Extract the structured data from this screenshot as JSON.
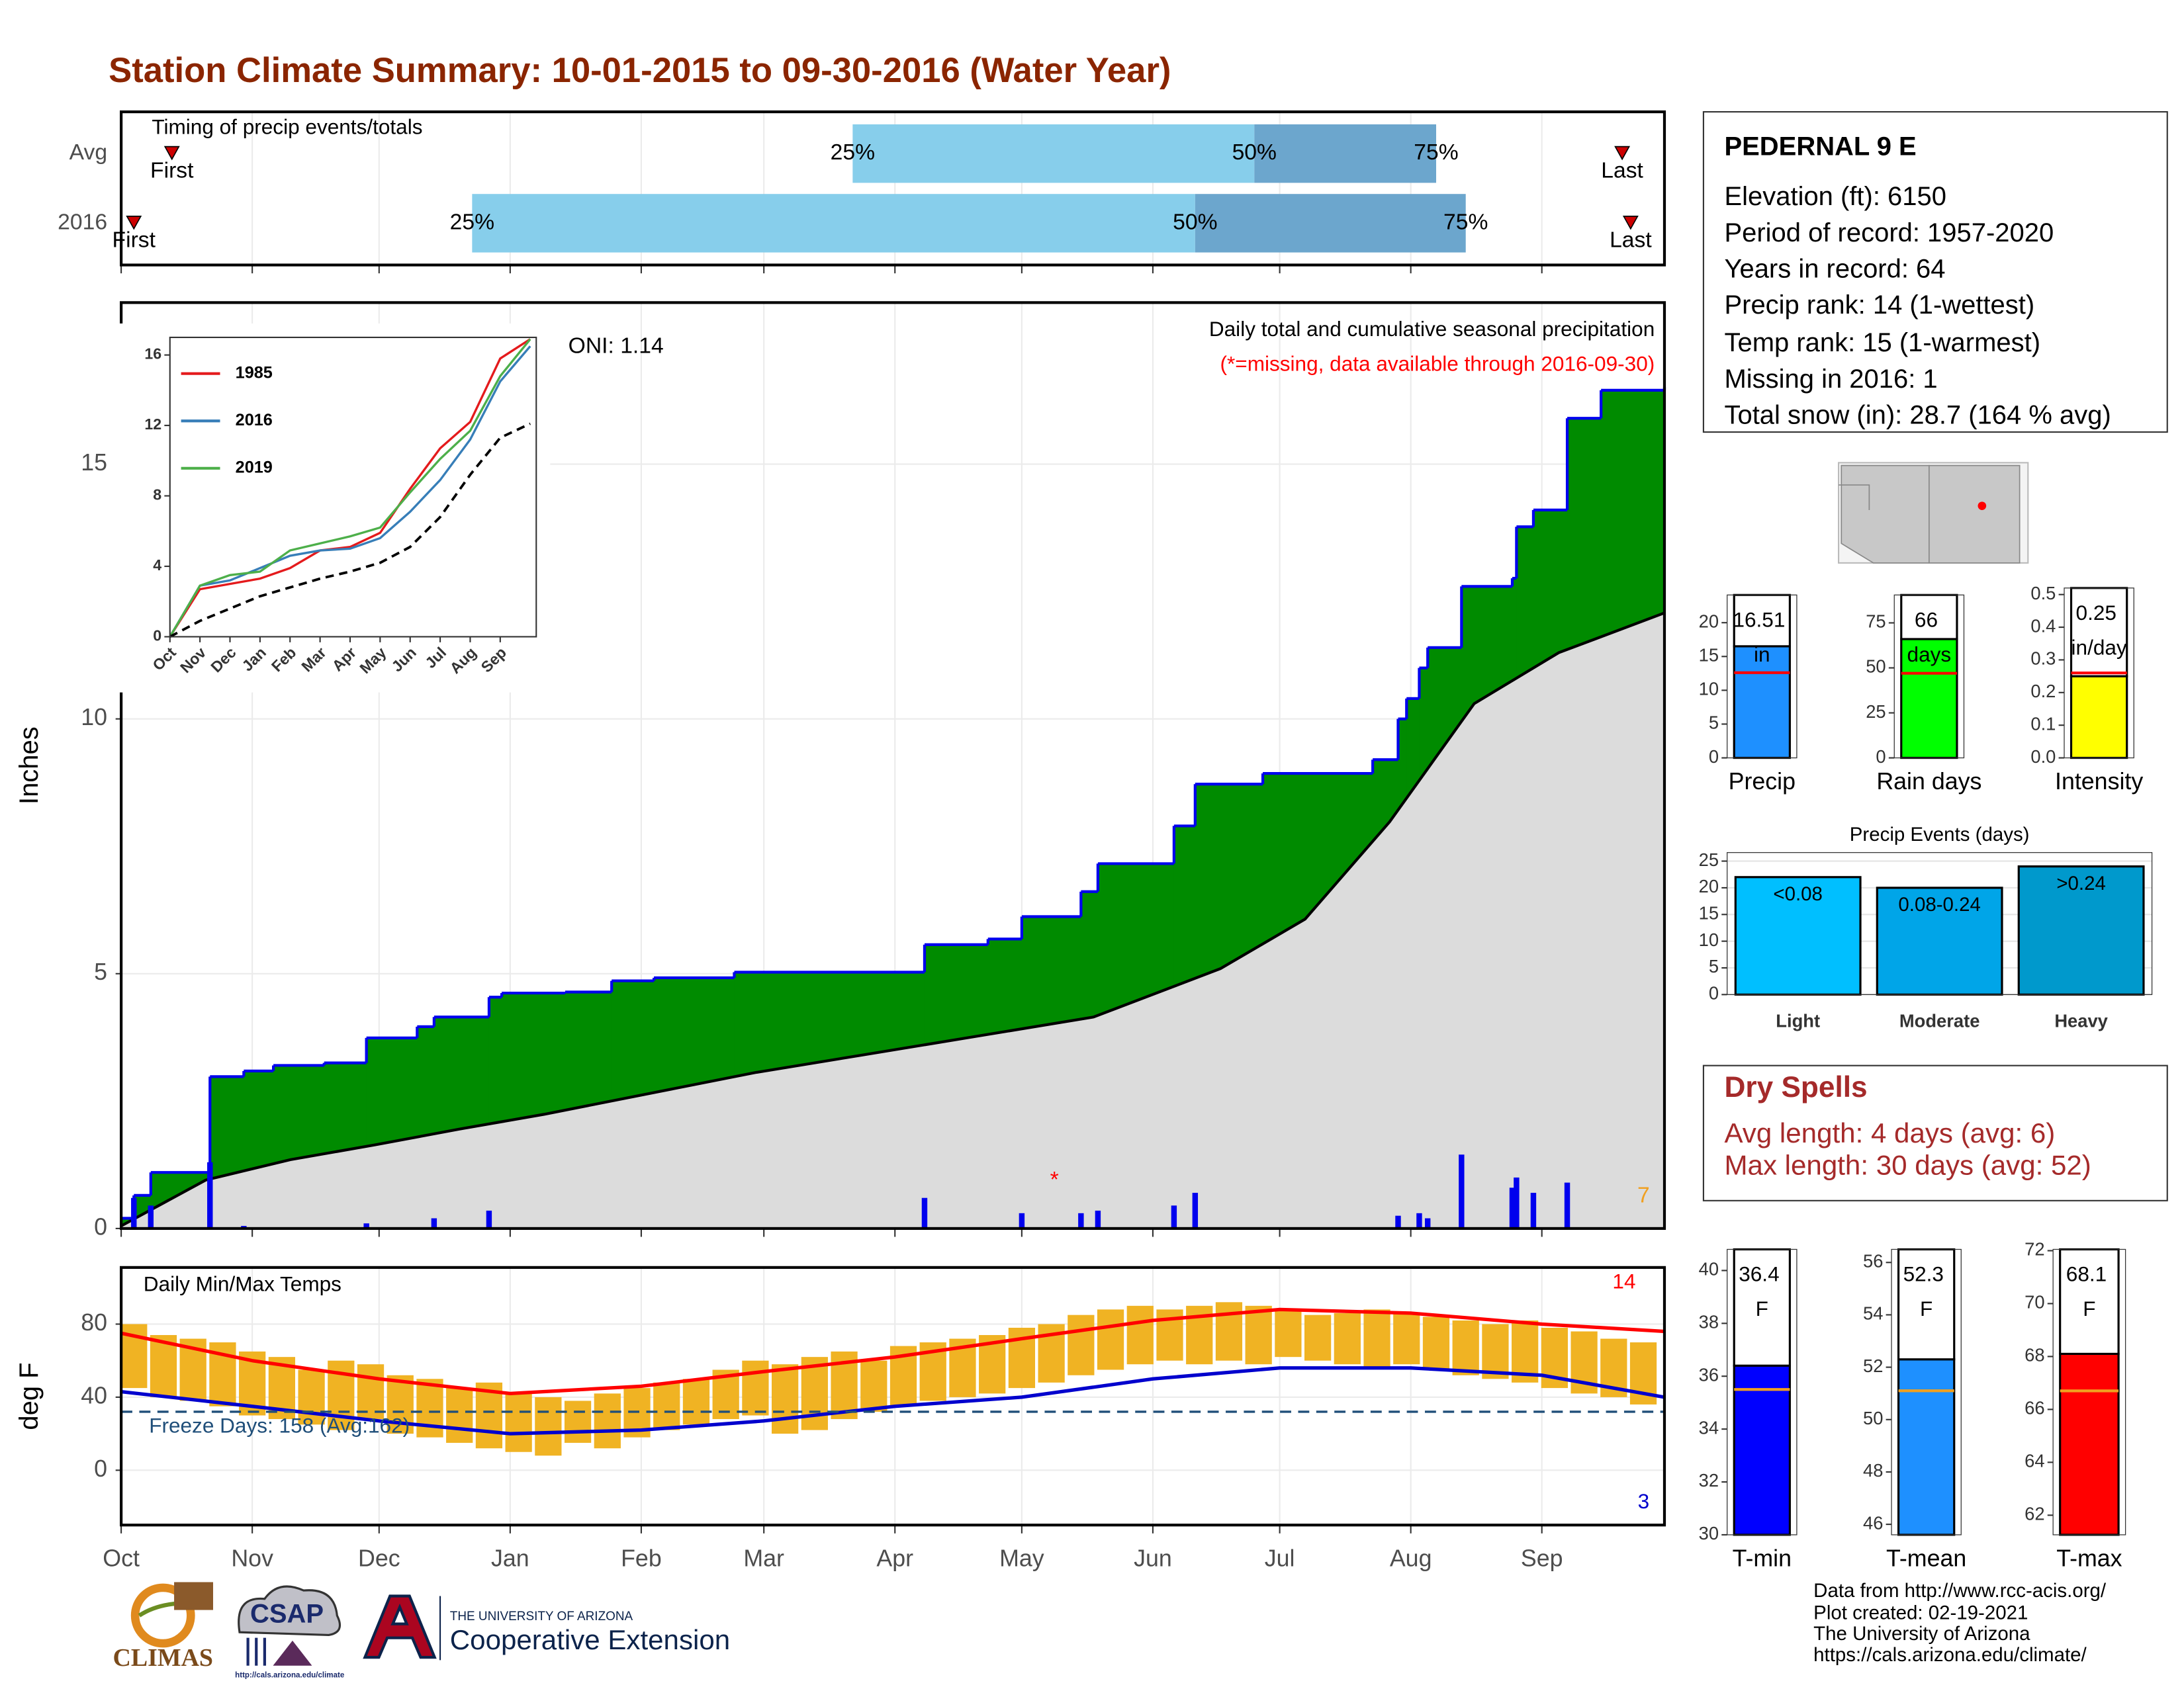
{
  "title": "Station Climate Summary: 10-01-2015 to 09-30-2016 (Water Year)",
  "station": {
    "name": "PEDERNAL 9 E",
    "lines": [
      "Elevation (ft): 6150",
      "Period of record: 1957-2020",
      "Years in record: 64",
      "Precip rank: 14 (1-wettest)",
      "Temp rank: 15 (1-warmest)",
      "Missing in 2016: 1",
      "Total snow (in): 28.7 (164 % avg)"
    ]
  },
  "dry_spells": {
    "title": "Dry Spells",
    "lines": [
      "Avg length: 4 days (avg: 6)",
      "Max length: 30 days (avg: 52)"
    ]
  },
  "footer": [
    "Data from http://www.rcc-acis.org/",
    "Plot created: 02-19-2021",
    "The University of Arizona",
    "https://cals.arizona.edu/climate/"
  ],
  "logos": {
    "climas": "CLIMAS",
    "csap": "CSAP",
    "csap_url": "http://cals.arizona.edu/climate",
    "university": "THE UNIVERSITY OF ARIZONA",
    "extension": "Cooperative Extension"
  },
  "chart_data": [
    {
      "type": "range",
      "title": "Timing of precip events/totals",
      "xlim": [
        0,
        365
      ],
      "xticks": [
        0,
        31,
        61,
        92,
        123,
        152,
        183,
        213,
        244,
        274,
        305,
        336
      ],
      "rows": [
        {
          "name": "Avg",
          "first": 12,
          "p25": 173,
          "p50": 268,
          "p75": 311,
          "last": 355
        },
        {
          "name": "2016",
          "first": 3,
          "p25": 83,
          "p50": 254,
          "p75": 318,
          "last": 357
        }
      ],
      "marker_labels": {
        "first": "First",
        "p25": "25%",
        "p50": "50%",
        "p75": "75%",
        "last": "Last"
      },
      "colors": {
        "early": "#87ceeb",
        "late": "#6ca6cd",
        "marker": "#cc0000"
      }
    },
    {
      "type": "area",
      "title": "Daily total and cumulative seasonal precipitation",
      "subtitle": "(*=missing, data available through 2016-09-30)",
      "subtitle_color": "#ff0000",
      "ylabel": "Inches",
      "xlim": [
        0,
        365
      ],
      "ylim": [
        0,
        18.17
      ],
      "yticks": [
        0,
        5,
        10,
        15
      ],
      "xticks": [
        0,
        31,
        61,
        92,
        123,
        152,
        183,
        213,
        244,
        274,
        305,
        336
      ],
      "grid": true,
      "annotations": [
        {
          "text": "ONI: 1.14",
          "color": "#000000"
        },
        {
          "text": "7",
          "color": "#f0a020"
        },
        {
          "text": "*",
          "color": "#ff0000"
        }
      ],
      "series": [
        {
          "color": "#008b00",
          "line_color": "#0000ee",
          "x": [
            0,
            3,
            7,
            21,
            29,
            36,
            48,
            58,
            70,
            74,
            87,
            90,
            105,
            116,
            126,
            145,
            190,
            205,
            213,
            227,
            231,
            249,
            254,
            270,
            296,
            302,
            304,
            307,
            309,
            317,
            329,
            330,
            334,
            342,
            350,
            365
          ],
          "values": [
            0.2,
            0.65,
            1.1,
            2.98,
            3.09,
            3.2,
            3.25,
            3.74,
            3.96,
            4.15,
            4.54,
            4.62,
            4.64,
            4.86,
            4.92,
            5.03,
            5.57,
            5.68,
            6.12,
            6.61,
            7.16,
            7.9,
            8.72,
            8.93,
            9.2,
            10.0,
            10.4,
            11.0,
            11.4,
            12.6,
            12.76,
            13.77,
            14.1,
            15.9,
            16.45,
            16.51
          ]
        },
        {
          "color": "#dcdcdc",
          "line_color": "#000000",
          "x": [
            0,
            20,
            40,
            60,
            80,
            100,
            125,
            150,
            175,
            200,
            230,
            260,
            280,
            300,
            320,
            340,
            365
          ],
          "values": [
            0.05,
            0.95,
            1.35,
            1.64,
            1.95,
            2.24,
            2.65,
            3.06,
            3.4,
            3.74,
            4.15,
            5.1,
            6.07,
            7.98,
            10.3,
            11.3,
            12.08
          ]
        }
      ],
      "daily": {
        "color": "#0000ee",
        "x": [
          3,
          7,
          21,
          29,
          58,
          74,
          87,
          190,
          213,
          227,
          231,
          249,
          254,
          302,
          307,
          309,
          317,
          329,
          330,
          334,
          342
        ],
        "values": [
          0.6,
          0.45,
          1.3,
          0.05,
          0.1,
          0.2,
          0.35,
          0.6,
          0.3,
          0.3,
          0.35,
          0.45,
          0.7,
          0.25,
          0.3,
          0.2,
          1.45,
          0.8,
          1.0,
          0.7,
          0.9
        ]
      }
    },
    {
      "type": "line",
      "xlim": [
        0,
        12.2
      ],
      "ylim": [
        0,
        17
      ],
      "yticks": [
        0,
        4,
        8,
        12,
        16
      ],
      "xticks": [
        {
          "value": 0,
          "label": "Oct"
        },
        {
          "value": 1,
          "label": "Nov"
        },
        {
          "value": 2,
          "label": "Dec"
        },
        {
          "value": 3,
          "label": "Jan"
        },
        {
          "value": 4,
          "label": "Feb"
        },
        {
          "value": 5,
          "label": "Mar"
        },
        {
          "value": 6,
          "label": "Apr"
        },
        {
          "value": 7,
          "label": "May"
        },
        {
          "value": 8,
          "label": "Jun"
        },
        {
          "value": 9,
          "label": "Jul"
        },
        {
          "value": 10,
          "label": "Aug"
        },
        {
          "value": 11,
          "label": "Sep"
        }
      ],
      "x": [
        0,
        1,
        2,
        3,
        4,
        5,
        6,
        7,
        8,
        9,
        10,
        11,
        12
      ],
      "series": [
        {
          "name": "1985",
          "color": "#e41a1c",
          "values": [
            0,
            2.7,
            3.0,
            3.3,
            3.9,
            4.9,
            5.1,
            5.9,
            8.4,
            10.7,
            12.2,
            15.8,
            16.9
          ]
        },
        {
          "name": "2016",
          "color": "#377eb8",
          "values": [
            0,
            2.9,
            3.2,
            3.9,
            4.6,
            4.9,
            5.0,
            5.6,
            7.1,
            8.9,
            11.2,
            14.5,
            16.5
          ]
        },
        {
          "name": "2019",
          "color": "#4daf4a",
          "values": [
            0,
            2.9,
            3.5,
            3.7,
            4.9,
            5.3,
            5.7,
            6.2,
            8.2,
            10.1,
            11.7,
            14.8,
            16.9
          ]
        },
        {
          "color": "#000000",
          "dash": true,
          "values": [
            0,
            0.9,
            1.6,
            2.3,
            2.8,
            3.3,
            3.7,
            4.2,
            5.1,
            6.8,
            9.2,
            11.3,
            12.1
          ]
        }
      ]
    },
    {
      "type": "band",
      "title": "Daily Min/Max Temps",
      "ylabel": "deg F",
      "xlim": [
        0,
        365
      ],
      "ylim": [
        -30,
        111
      ],
      "yticks": [
        0,
        40,
        80
      ],
      "grid": true,
      "xticks": [
        {
          "value": 0,
          "label": "Oct"
        },
        {
          "value": 31,
          "label": "Nov"
        },
        {
          "value": 61,
          "label": "Dec"
        },
        {
          "value": 92,
          "label": "Jan"
        },
        {
          "value": 123,
          "label": "Feb"
        },
        {
          "value": 152,
          "label": "Mar"
        },
        {
          "value": 183,
          "label": "Apr"
        },
        {
          "value": 213,
          "label": "May"
        },
        {
          "value": 244,
          "label": "Jun"
        },
        {
          "value": 274,
          "label": "Jul"
        },
        {
          "value": 305,
          "label": "Aug"
        },
        {
          "value": 336,
          "label": "Sep"
        }
      ],
      "bars": {
        "color": "#f0b323",
        "x": [
          3,
          10,
          17,
          24,
          31,
          38,
          45,
          52,
          59,
          66,
          73,
          80,
          87,
          94,
          101,
          108,
          115,
          122,
          129,
          136,
          143,
          150,
          157,
          164,
          171,
          178,
          185,
          192,
          199,
          206,
          213,
          220,
          227,
          234,
          241,
          248,
          255,
          262,
          269,
          276,
          283,
          290,
          297,
          304,
          311,
          318,
          325,
          332,
          339,
          346,
          353,
          360
        ],
        "max": [
          80,
          74,
          72,
          70,
          65,
          62,
          55,
          60,
          58,
          52,
          50,
          45,
          48,
          42,
          40,
          38,
          42,
          45,
          48,
          50,
          55,
          60,
          58,
          62,
          65,
          60,
          68,
          70,
          72,
          74,
          78,
          80,
          85,
          88,
          90,
          88,
          90,
          92,
          90,
          88,
          85,
          86,
          88,
          86,
          84,
          82,
          80,
          82,
          78,
          76,
          72,
          70
        ],
        "min": [
          45,
          40,
          38,
          35,
          30,
          28,
          25,
          22,
          28,
          20,
          18,
          15,
          12,
          10,
          8,
          15,
          12,
          18,
          22,
          25,
          28,
          30,
          20,
          22,
          28,
          32,
          35,
          38,
          40,
          42,
          45,
          48,
          52,
          55,
          58,
          60,
          58,
          60,
          58,
          62,
          60,
          58,
          56,
          58,
          55,
          52,
          50,
          48,
          45,
          42,
          40,
          36
        ]
      },
      "normals": {
        "max_color": "#ff0000",
        "min_color": "#0000cd",
        "x": [
          0,
          31,
          61,
          92,
          123,
          152,
          183,
          213,
          244,
          274,
          305,
          336,
          365
        ],
        "max": [
          75,
          60,
          50,
          42,
          46,
          54,
          62,
          72,
          82,
          88,
          86,
          80,
          76
        ],
        "min": [
          43,
          35,
          27,
          20,
          22,
          27,
          35,
          40,
          50,
          56,
          56,
          52,
          40
        ]
      },
      "freeze": {
        "value": 32,
        "color": "#1f4e79",
        "label": "Freeze Days: 158 (Avg:162)"
      },
      "annotations": [
        {
          "text": "14",
          "color": "#ff0000"
        },
        {
          "text": "3",
          "color": "#0000cd"
        }
      ]
    },
    {
      "type": "bar",
      "categories": [
        "Precip"
      ],
      "values": [
        16.51
      ],
      "value_labels": [
        "16.51 in"
      ],
      "average": 12.6,
      "color": "#1e90ff",
      "avg_color": "#ff0000",
      "ylim": [
        0,
        24.1
      ],
      "yticks": [
        0,
        5,
        10,
        15,
        20
      ]
    },
    {
      "type": "bar",
      "categories": [
        "Rain days"
      ],
      "values": [
        66
      ],
      "value_labels": [
        "66 days"
      ],
      "average": 47,
      "color": "#00ff00",
      "avg_color": "#ff0000",
      "ylim": [
        0,
        90.5
      ],
      "yticks": [
        0,
        25,
        50,
        75
      ]
    },
    {
      "type": "bar",
      "categories": [
        "Intensity"
      ],
      "values": [
        0.25
      ],
      "value_labels": [
        "0.25 in/day"
      ],
      "average": 0.26,
      "color": "#ffff00",
      "avg_color": "#ff0000",
      "ylim": [
        0,
        0.52
      ],
      "yticks": [
        {
          "value": 0,
          "label": "0.0"
        },
        0.1,
        0.2,
        0.3,
        0.4,
        0.5
      ]
    },
    {
      "type": "bar",
      "title": "Precip Events (days)",
      "categories": [
        "Light",
        "Moderate",
        "Heavy"
      ],
      "values": [
        22,
        20,
        24
      ],
      "bin_labels": [
        "<0.08",
        "0.08-0.24",
        ">0.24"
      ],
      "colors": [
        "#00bfff",
        "#00a5e8",
        "#0099cc"
      ],
      "ylim": [
        0,
        26.6
      ],
      "yticks": [
        0,
        5,
        10,
        15,
        20,
        25
      ],
      "grid": true
    },
    {
      "type": "bar",
      "categories": [
        "T-min"
      ],
      "values": [
        36.4
      ],
      "value_labels": [
        "36.4 F"
      ],
      "average": 35.5,
      "color": "#0000ff",
      "avg_color": "#f0a020",
      "ylim": [
        30,
        40.8
      ],
      "yticks": [
        30,
        32,
        34,
        36,
        38,
        40
      ]
    },
    {
      "type": "bar",
      "categories": [
        "T-mean"
      ],
      "values": [
        52.3
      ],
      "value_labels": [
        "52.3 F"
      ],
      "average": 51.1,
      "color": "#1e90ff",
      "avg_color": "#f0a020",
      "ylim": [
        45.6,
        56.5
      ],
      "yticks": [
        46,
        48,
        50,
        52,
        54,
        56
      ]
    },
    {
      "type": "bar",
      "categories": [
        "T-max"
      ],
      "values": [
        68.1
      ],
      "value_labels": [
        "68.1 F"
      ],
      "average": 66.7,
      "color": "#ff0000",
      "avg_color": "#f0a020",
      "ylim": [
        61.26,
        72.05
      ],
      "yticks": [
        62,
        64,
        66,
        68,
        70,
        72
      ]
    }
  ]
}
